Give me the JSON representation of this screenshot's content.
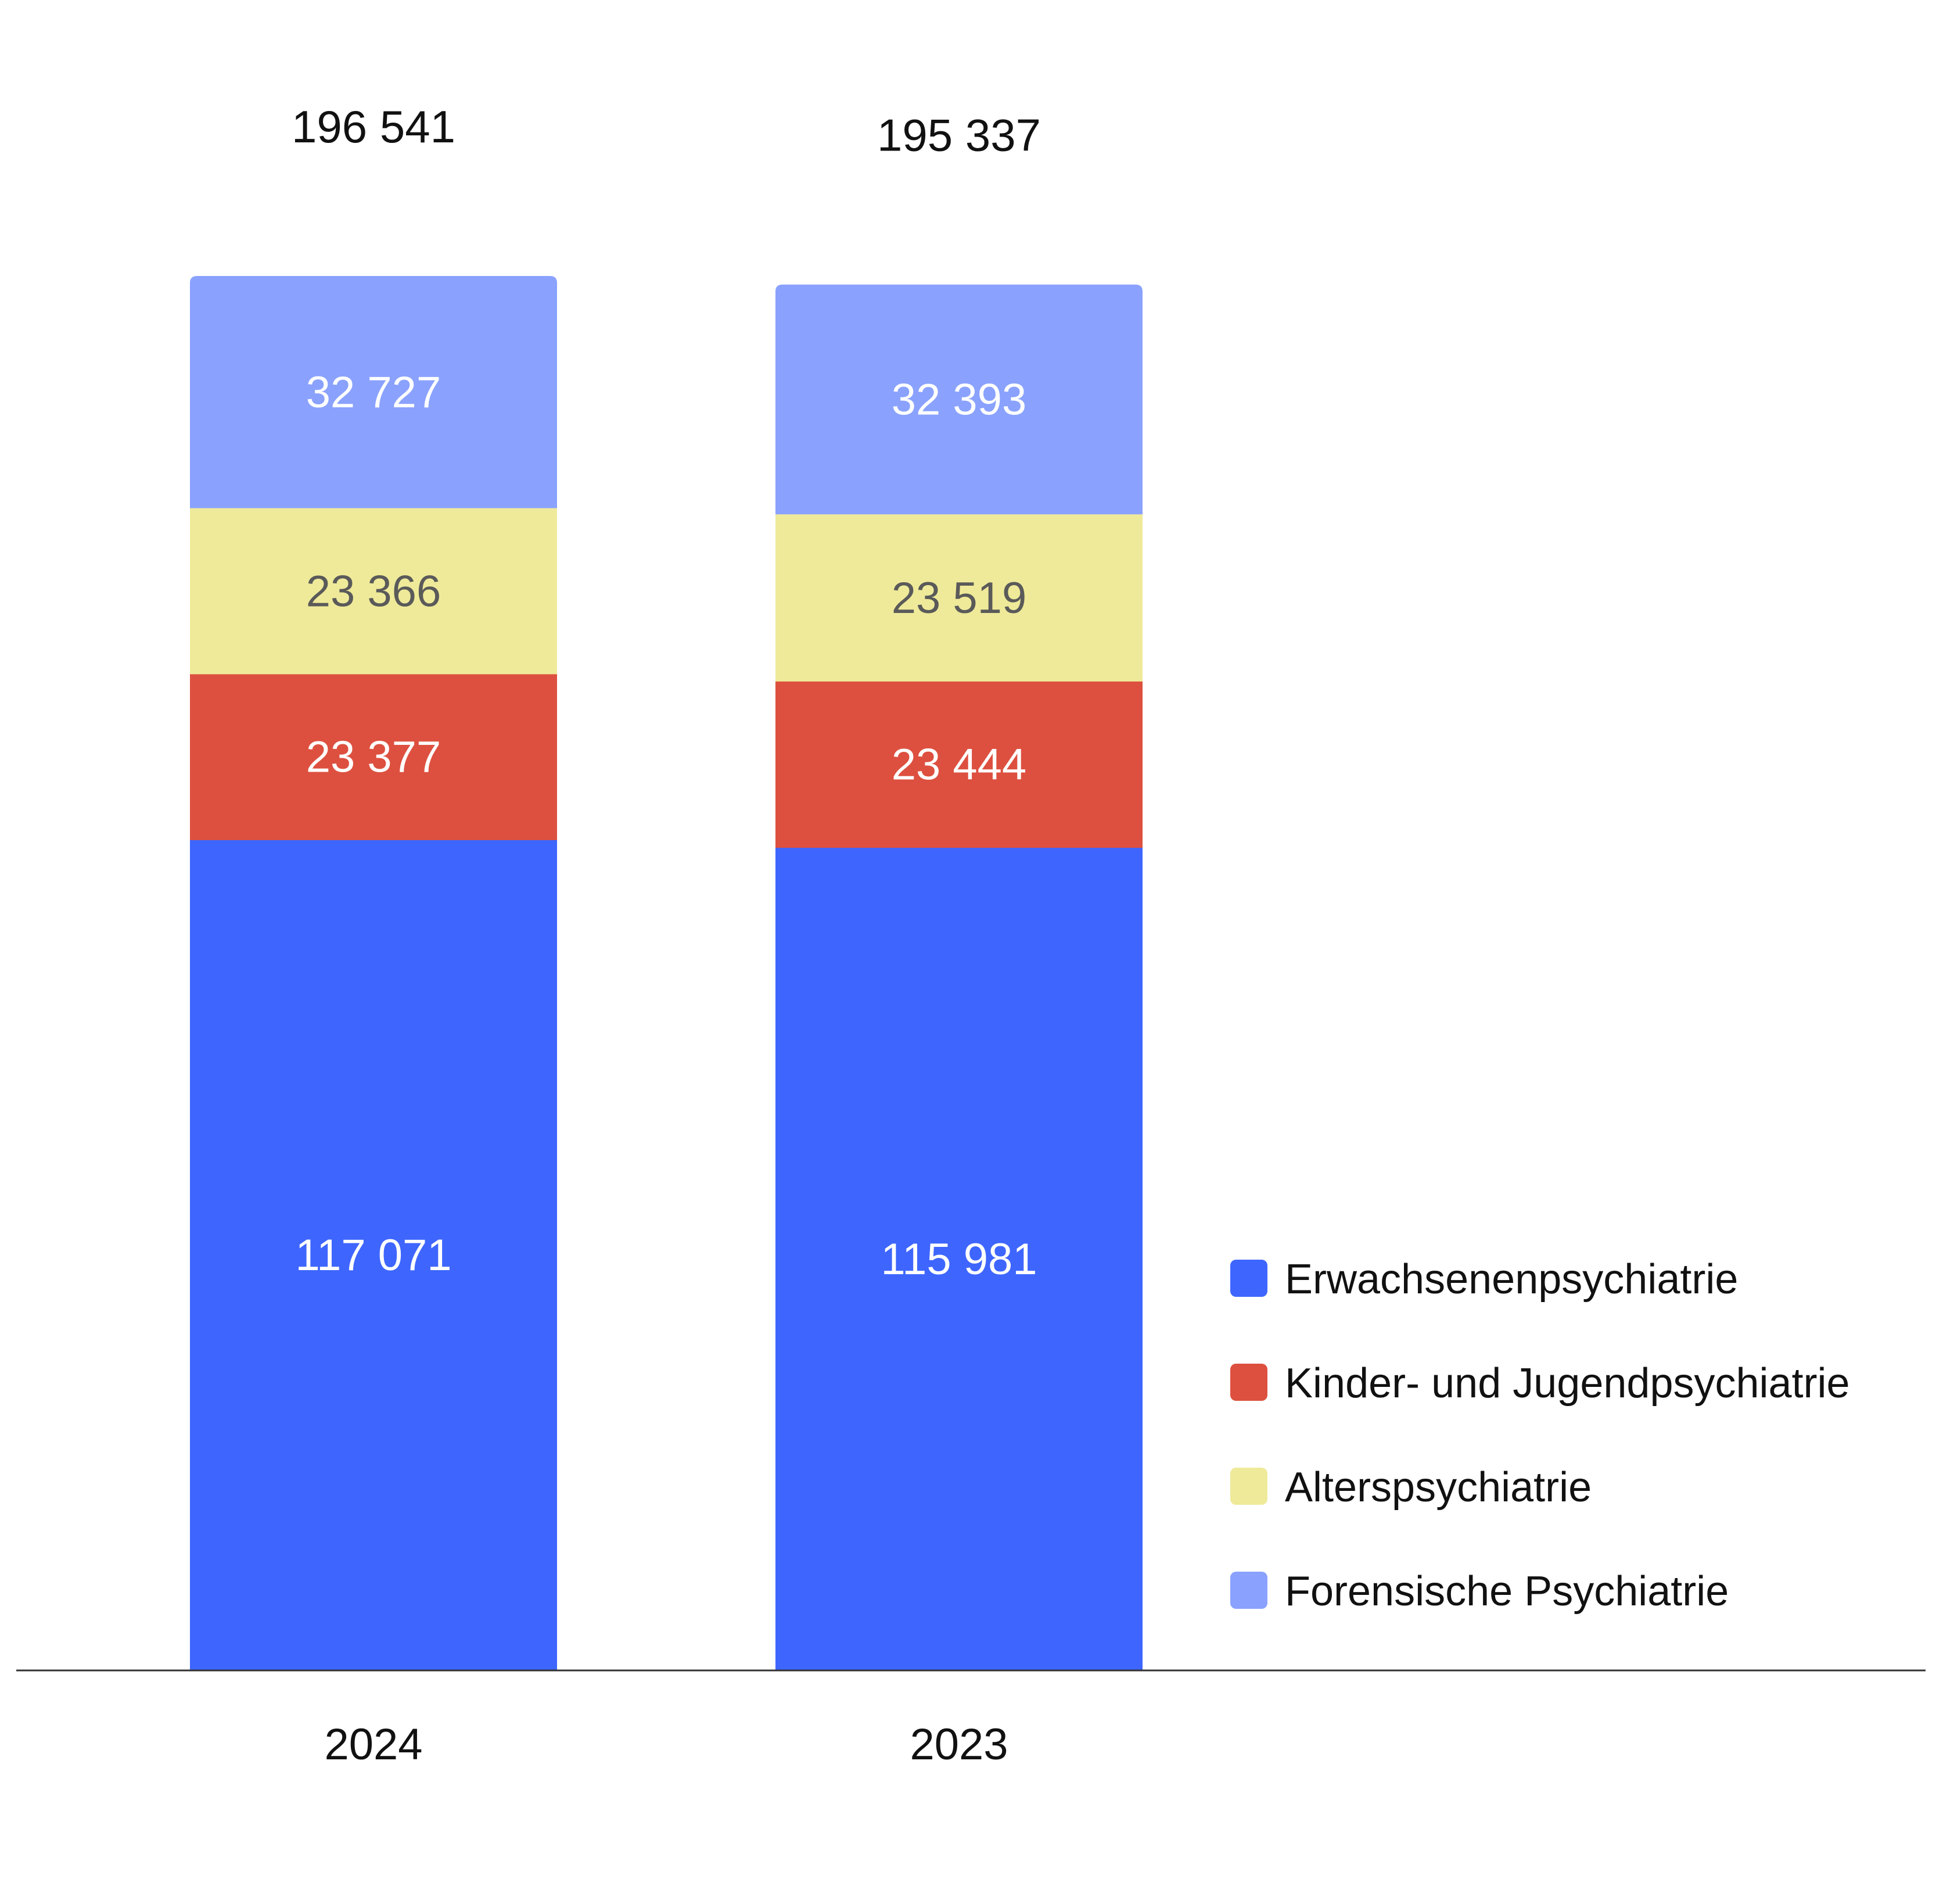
{
  "chart_data": {
    "type": "bar",
    "stacked": true,
    "categories": [
      "2024",
      "2023"
    ],
    "totals": [
      "196 541",
      "195 337"
    ],
    "series": [
      {
        "name": "Erwachsenenpsychiatrie",
        "color": "#3E66FE",
        "label_color": "#FFFFFF",
        "values": [
          117071,
          115981
        ],
        "labels": [
          "117 071",
          "115 981"
        ]
      },
      {
        "name": "Kinder- und Jugendpsychiatrie",
        "color": "#DD503F",
        "label_color": "#FFFFFF",
        "values": [
          23377,
          23444
        ],
        "labels": [
          "23 377",
          "23 444"
        ]
      },
      {
        "name": "Alterspsychiatrie",
        "color": "#EFEA99",
        "label_color": "#5A5A5A",
        "values": [
          23366,
          23519
        ],
        "labels": [
          "23 366",
          "23 519"
        ]
      },
      {
        "name": "Forensische Psychiatrie",
        "color": "#8AA2FE",
        "label_color": "#FFFFFF",
        "values": [
          32727,
          32393
        ],
        "labels": [
          "32 727",
          "32 393"
        ]
      }
    ],
    "legend": "right",
    "grid": false,
    "ylim": [
      0,
      196541
    ]
  }
}
